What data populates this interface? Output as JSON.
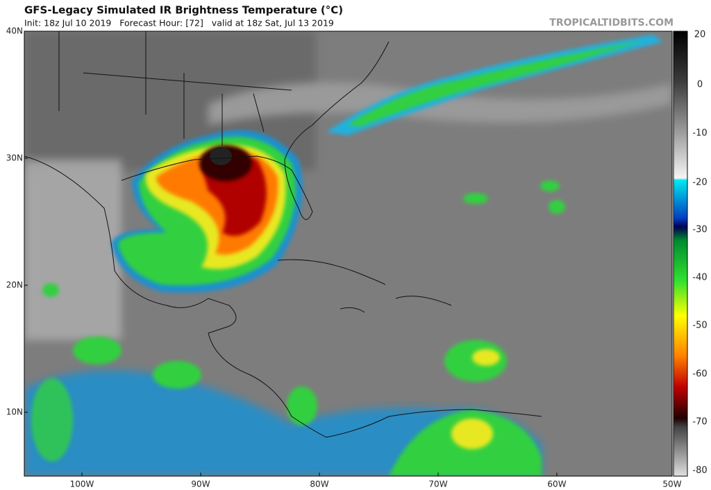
{
  "header": {
    "title": "GFS-Legacy Simulated IR Brightness Temperature (°C)",
    "subtitle": "Init: 18z Jul 10 2019   Forecast Hour: [72]   valid at 18z Sat, Jul 13 2019",
    "credit": "TROPICALTIDBITS.COM"
  },
  "map": {
    "lat_labels": [
      "40N",
      "30N",
      "20N",
      "10N"
    ],
    "lon_labels": [
      "100W",
      "90W",
      "80W",
      "70W",
      "60W",
      "50W"
    ]
  },
  "colorbar": {
    "labels": [
      "20",
      "0",
      "-10",
      "-20",
      "-30",
      "-40",
      "-50",
      "-60",
      "-70",
      "-80"
    ]
  }
}
